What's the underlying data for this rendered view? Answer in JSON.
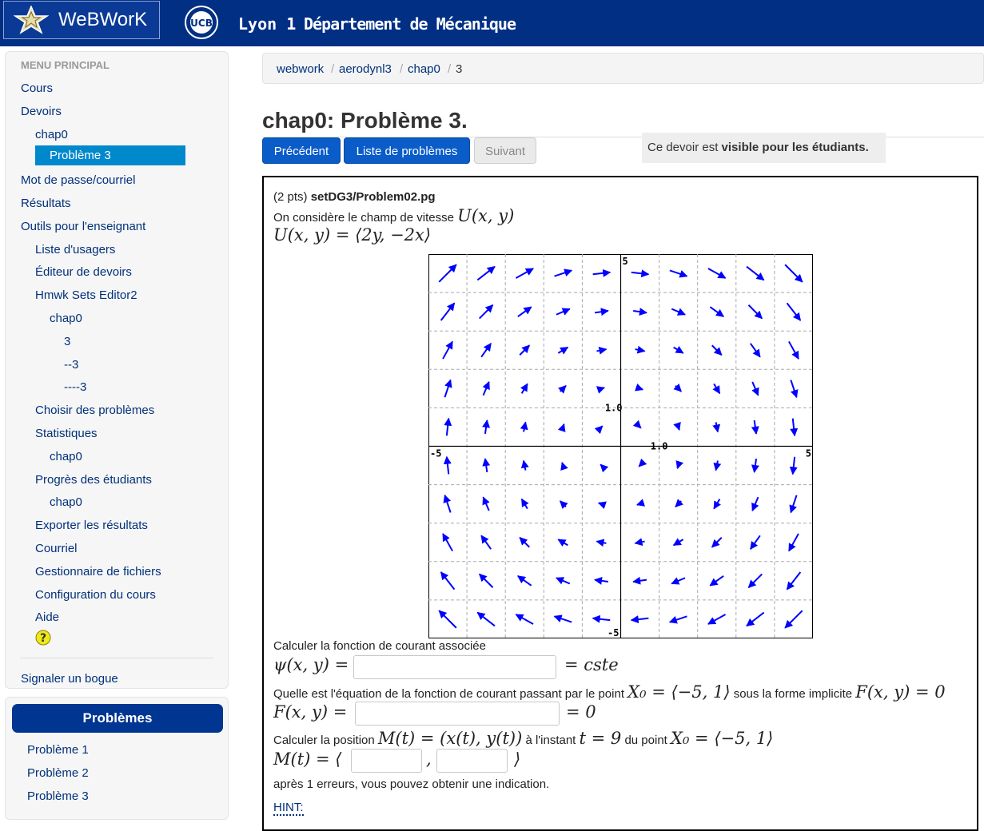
{
  "header": {
    "brand": "WeBWorK",
    "university": "Lyon 1",
    "department": "Département de Mécanique"
  },
  "sidebar": {
    "heading": "MENU PRINCIPAL",
    "items": [
      {
        "label": "Cours",
        "level": 0
      },
      {
        "label": "Devoirs",
        "level": 0
      },
      {
        "label": "chap0",
        "level": 1
      },
      {
        "label": "Problème 3",
        "level": 2,
        "active": true
      },
      {
        "label": "Mot de passe/courriel",
        "level": 0
      },
      {
        "label": "Résultats",
        "level": 0
      },
      {
        "label": "Outils pour l'enseignant",
        "level": 0
      },
      {
        "label": "Liste d'usagers",
        "level": 1
      },
      {
        "label": "Éditeur de devoirs",
        "level": 1
      },
      {
        "label": "Hmwk Sets Editor2",
        "level": 1
      },
      {
        "label": "chap0",
        "level": 2
      },
      {
        "label": "3",
        "level": 3
      },
      {
        "label": "--3",
        "level": 3
      },
      {
        "label": "----3",
        "level": 3
      },
      {
        "label": "Choisir des problèmes",
        "level": 1
      },
      {
        "label": "Statistiques",
        "level": 1
      },
      {
        "label": "chap0",
        "level": 2
      },
      {
        "label": "Progrès des étudiants",
        "level": 1
      },
      {
        "label": "chap0",
        "level": 2
      },
      {
        "label": "Exporter les résultats",
        "level": 1
      },
      {
        "label": "Courriel",
        "level": 1
      },
      {
        "label": "Gestionnaire de fichiers",
        "level": 1
      },
      {
        "label": "Configuration du cours",
        "level": 1
      },
      {
        "label": "Aide",
        "level": 1
      }
    ],
    "report_bug": "Signaler un bogue"
  },
  "problems_panel": {
    "heading": "Problèmes",
    "items": [
      "Problème 1",
      "Problème 2",
      "Problème 3"
    ]
  },
  "breadcrumb": [
    "webwork",
    "aerodynl3",
    "chap0",
    "3"
  ],
  "page_title": "chap0: Problème 3.",
  "buttons": {
    "previous": "Précédent",
    "list": "Liste de problèmes",
    "next": "Suivant"
  },
  "visibility": {
    "prefix": "Ce devoir est ",
    "strong": "visible pour les étudiants."
  },
  "problem": {
    "points": "(2 pts) ",
    "file": "setDG3/Problem02.pg",
    "intro": "On considère le champ de vitesse ",
    "intro_math": "U(x, y)",
    "field_math": "U(x, y) = ⟨2y, −2x⟩",
    "q1": "Calculer la fonction de courant associée",
    "q1_lhs": "ψ(x, y) =",
    "q1_rhs": "= cste",
    "q2_a": "Quelle est l'équation de la fonction de courant passant par le point ",
    "q2_point": "X₀ = ⟨−5, 1⟩",
    "q2_b": " sous la forme implicite ",
    "q2_form": "F(x, y) = 0",
    "q2_lhs": "F(x, y) =",
    "q2_rhs": "= 0",
    "q3_a": "Calculer la position ",
    "q3_M": "M(t) = (x(t), y(t))",
    "q3_b": " à l'instant ",
    "q3_t": "t = 9",
    "q3_c": " du point ",
    "q3_point": "X₀ = ⟨−5, 1⟩",
    "q3_lhs": "M(t) = ⟨",
    "q3_comma": ",",
    "q3_close": "⟩",
    "note": "après 1 erreurs, vous pouvez obtenir une indication.",
    "hint": "HINT:",
    "inputs": {
      "psi": "",
      "F": "",
      "x": "",
      "y": ""
    }
  },
  "chart_data": {
    "type": "vector-field",
    "field": "U(x, y) = ⟨2y, −2x⟩",
    "xlim": [
      -5,
      5
    ],
    "ylim": [
      -5,
      5
    ],
    "grid": true,
    "tick_labels": {
      "xmin": "-5",
      "xmax": "5",
      "ymax": "5",
      "ymin": "-5",
      "x_unit": "1.0",
      "y_unit": "1.0"
    },
    "arrow_color": "#0000ff"
  }
}
